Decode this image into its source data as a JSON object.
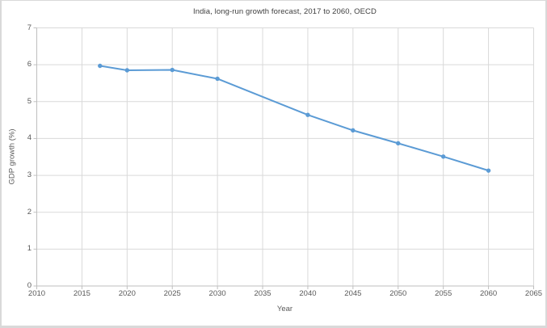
{
  "chart_data": {
    "type": "line",
    "title": "India, long-run growth forecast, 2017 to 2060, OECD",
    "xlabel": "Year",
    "ylabel": "GDP growth (%)",
    "x": [
      2017,
      2020,
      2025,
      2030,
      2040,
      2045,
      2050,
      2055,
      2060
    ],
    "y": [
      5.97,
      5.85,
      5.86,
      5.62,
      4.64,
      4.22,
      3.87,
      3.51,
      3.13
    ],
    "xlim": [
      2010,
      2065
    ],
    "ylim": [
      0,
      7
    ],
    "x_ticks": [
      2010,
      2015,
      2020,
      2025,
      2030,
      2035,
      2040,
      2045,
      2050,
      2055,
      2060,
      2065
    ],
    "y_ticks": [
      0,
      1,
      2,
      3,
      4,
      5,
      6,
      7
    ],
    "grid": true,
    "legend_position": "none",
    "colors": {
      "line": "#5B9BD5",
      "marker": "#5B9BD5",
      "gridline": "#D9D9D9",
      "axis": "#BFBFBF",
      "tick_label": "#595959",
      "title": "#404040",
      "frame_border": "#D9D9D9"
    }
  }
}
